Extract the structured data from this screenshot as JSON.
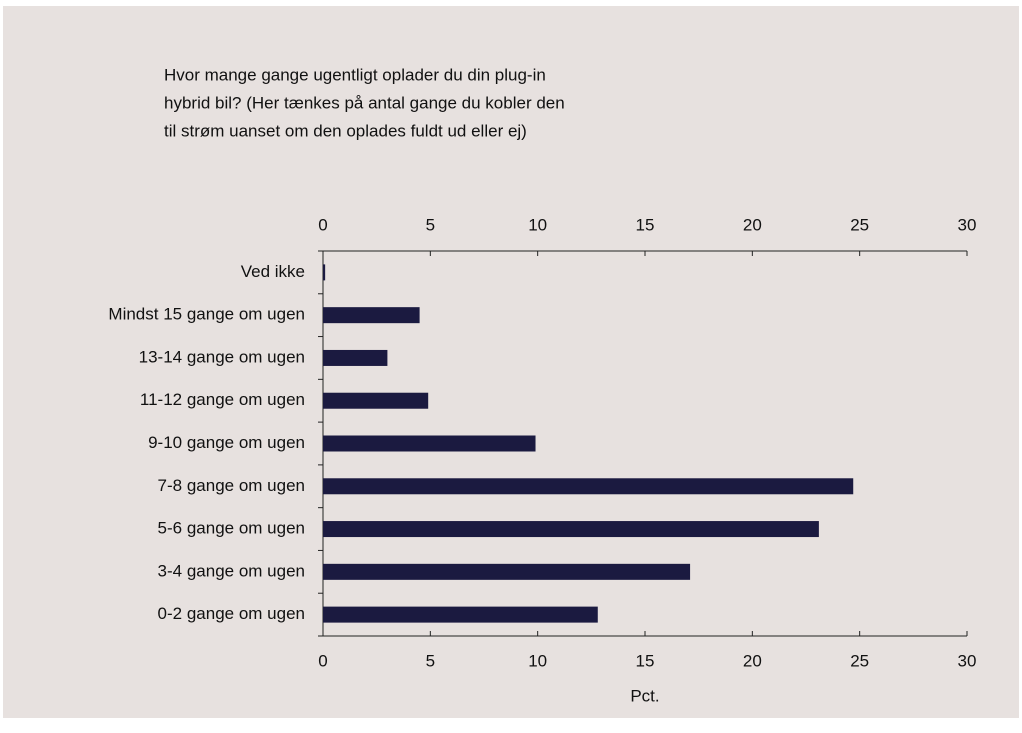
{
  "chart_data": {
    "type": "bar",
    "orientation": "horizontal",
    "title": [
      "Hvor mange gange ugentligt oplader du din plug-in",
      "hybrid bil? (Her tænkes på antal gange du kobler den",
      "til strøm uanset om den oplades fuldt ud eller ej)"
    ],
    "categories": [
      "Ved ikke",
      "Mindst 15 gange om ugen",
      "13-14 gange om ugen",
      "11-12 gange om ugen",
      "9-10 gange om ugen",
      "7-8 gange om ugen",
      "5-6 gange om ugen",
      "3-4 gange om ugen",
      "0-2 gange om ugen"
    ],
    "values": [
      0.1,
      4.5,
      3.0,
      4.9,
      9.9,
      24.7,
      23.1,
      17.1,
      12.8
    ],
    "color": "#1b1a40",
    "xlabel": "Pct.",
    "xlim": [
      0,
      30
    ],
    "xticks": [
      0,
      5,
      10,
      15,
      20,
      25,
      30
    ]
  }
}
